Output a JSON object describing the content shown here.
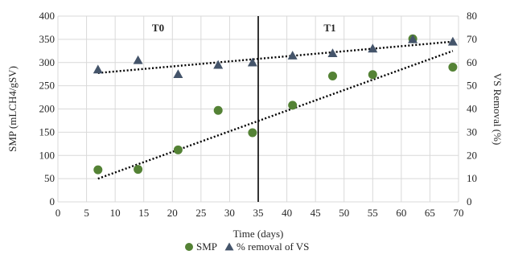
{
  "chart_data": {
    "type": "scatter",
    "xlabel": "Time (days)",
    "ylabel_left": "SMP (mLCH4/gSV)",
    "ylabel_right": "VS Removal (%)",
    "xlim": [
      0,
      70
    ],
    "x_ticks": [
      0,
      5,
      10,
      15,
      20,
      25,
      30,
      35,
      40,
      45,
      50,
      55,
      60,
      65,
      70
    ],
    "ylim_left": [
      0,
      400
    ],
    "y_ticks_left": [
      0,
      50,
      100,
      150,
      200,
      250,
      300,
      350,
      400
    ],
    "ylim_right": [
      0,
      80
    ],
    "y_ticks_right": [
      0,
      10,
      20,
      30,
      40,
      50,
      60,
      70,
      80
    ],
    "grid": true,
    "legend_position": "bottom",
    "divider_x": 35,
    "period_labels": [
      {
        "text": "T0",
        "x": 17.5
      },
      {
        "text": "T1",
        "x": 47.5
      }
    ],
    "series": [
      {
        "name": "SMP",
        "marker": "circle",
        "color": "#548235",
        "axis": "left",
        "x": [
          7,
          14,
          21,
          28,
          34,
          41,
          48,
          55,
          62,
          69
        ],
        "y": [
          69,
          70,
          112,
          197,
          149,
          208,
          271,
          274,
          351,
          290
        ],
        "trendline": {
          "x_range": [
            7,
            69
          ],
          "y_range": [
            50,
            325
          ]
        }
      },
      {
        "name": "% removal of VS",
        "marker": "triangle",
        "color": "#44546A",
        "axis": "right",
        "x": [
          7,
          14,
          21,
          28,
          34,
          41,
          48,
          55,
          62,
          69
        ],
        "y": [
          57,
          61,
          55,
          59,
          60,
          63,
          64,
          66,
          70,
          69
        ],
        "trendline": {
          "x_range": [
            7,
            69
          ],
          "y_range": [
            55.5,
            69
          ]
        }
      }
    ]
  }
}
